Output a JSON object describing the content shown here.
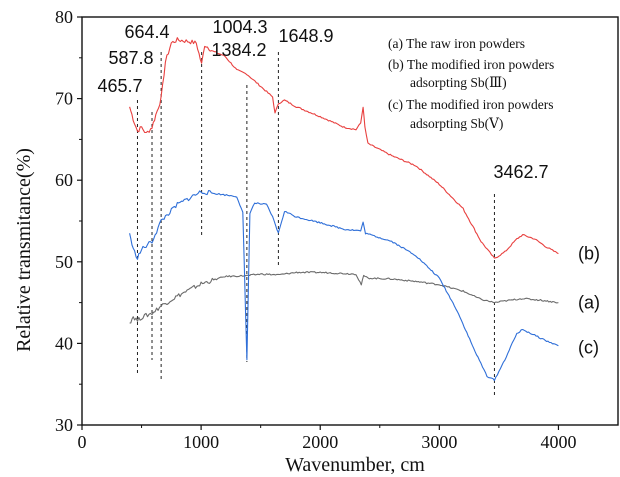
{
  "chart_data": {
    "type": "line",
    "xlabel": "Wavenumber, cm",
    "ylabel": "Relative transmitance(%)",
    "xlim": [
      0,
      4500
    ],
    "ylim": [
      30,
      80
    ],
    "xticks": [
      0,
      1000,
      2000,
      3000,
      4000
    ],
    "yticks": [
      30,
      40,
      50,
      60,
      70,
      80
    ],
    "legend_position": "top-right",
    "legend": [
      "(a) The raw iron powders",
      "(b) The modified iron powders",
      "adsorpting Sb(Ⅲ)",
      "(c) The modified iron powders",
      "adsorpting Sb(Ⅴ)"
    ],
    "series": [
      {
        "name": "(b)",
        "color": "#e8403f",
        "points": [
          [
            400,
            69.0
          ],
          [
            430,
            67.5
          ],
          [
            465.7,
            66.0
          ],
          [
            500,
            66.5
          ],
          [
            540,
            65.7
          ],
          [
            587.8,
            66.5
          ],
          [
            620,
            68.0
          ],
          [
            664.4,
            70.0
          ],
          [
            700,
            74.5
          ],
          [
            750,
            76.8
          ],
          [
            800,
            77.2
          ],
          [
            900,
            77.0
          ],
          [
            960,
            76.8
          ],
          [
            1004.3,
            74.2
          ],
          [
            1030,
            76.6
          ],
          [
            1100,
            75.8
          ],
          [
            1200,
            75.2
          ],
          [
            1300,
            73.5
          ],
          [
            1384.2,
            73.0
          ],
          [
            1500,
            71.5
          ],
          [
            1600,
            70.2
          ],
          [
            1620,
            68.2
          ],
          [
            1648.9,
            69.4
          ],
          [
            1700,
            69.8
          ],
          [
            1800,
            69.0
          ],
          [
            2000,
            67.8
          ],
          [
            2200,
            66.5
          ],
          [
            2300,
            66.2
          ],
          [
            2340,
            67.0
          ],
          [
            2360,
            69.0
          ],
          [
            2375,
            66.5
          ],
          [
            2400,
            64.5
          ],
          [
            2600,
            63.0
          ],
          [
            2800,
            61.8
          ],
          [
            3000,
            59.5
          ],
          [
            3200,
            56.5
          ],
          [
            3350,
            52.5
          ],
          [
            3462.7,
            50.4
          ],
          [
            3550,
            51.2
          ],
          [
            3650,
            52.8
          ],
          [
            3700,
            53.3
          ],
          [
            3800,
            52.8
          ],
          [
            3900,
            51.8
          ],
          [
            4000,
            51.0
          ]
        ]
      },
      {
        "name": "(a)",
        "color": "#6b6b6b",
        "points": [
          [
            400,
            42.5
          ],
          [
            430,
            43.3
          ],
          [
            465.7,
            42.8
          ],
          [
            500,
            43.2
          ],
          [
            587.8,
            43.7
          ],
          [
            664.4,
            44.6
          ],
          [
            800,
            45.8
          ],
          [
            1000,
            47.3
          ],
          [
            1200,
            48.2
          ],
          [
            1384.2,
            48.3
          ],
          [
            1500,
            48.5
          ],
          [
            1648.9,
            48.4
          ],
          [
            1800,
            48.7
          ],
          [
            2000,
            48.7
          ],
          [
            2300,
            48.5
          ],
          [
            2345,
            47.2
          ],
          [
            2365,
            48.3
          ],
          [
            2400,
            48.0
          ],
          [
            2600,
            47.9
          ],
          [
            2800,
            47.6
          ],
          [
            3000,
            47.2
          ],
          [
            3200,
            46.4
          ],
          [
            3350,
            45.4
          ],
          [
            3462.7,
            45.0
          ],
          [
            3550,
            45.2
          ],
          [
            3700,
            45.5
          ],
          [
            3850,
            45.3
          ],
          [
            4000,
            45.0
          ]
        ]
      },
      {
        "name": "(c)",
        "color": "#2f6fd8",
        "points": [
          [
            400,
            53.5
          ],
          [
            430,
            51.5
          ],
          [
            465.7,
            50.5
          ],
          [
            500,
            51.5
          ],
          [
            587.8,
            52.5
          ],
          [
            664.4,
            55.0
          ],
          [
            800,
            57.0
          ],
          [
            1000,
            58.6
          ],
          [
            1100,
            58.4
          ],
          [
            1200,
            58.2
          ],
          [
            1300,
            58.0
          ],
          [
            1350,
            56.0
          ],
          [
            1384.2,
            38.0
          ],
          [
            1410,
            56.0
          ],
          [
            1450,
            57.2
          ],
          [
            1550,
            57.0
          ],
          [
            1600,
            55.5
          ],
          [
            1648.9,
            53.5
          ],
          [
            1700,
            56.2
          ],
          [
            1800,
            55.5
          ],
          [
            2000,
            54.8
          ],
          [
            2200,
            54.0
          ],
          [
            2340,
            53.8
          ],
          [
            2360,
            54.8
          ],
          [
            2380,
            53.5
          ],
          [
            2600,
            52.5
          ],
          [
            2800,
            50.8
          ],
          [
            3000,
            48.0
          ],
          [
            3150,
            44.0
          ],
          [
            3300,
            39.0
          ],
          [
            3400,
            36.0
          ],
          [
            3462.7,
            35.5
          ],
          [
            3550,
            38.0
          ],
          [
            3650,
            41.2
          ],
          [
            3700,
            41.7
          ],
          [
            3800,
            41.0
          ],
          [
            3900,
            40.3
          ],
          [
            4000,
            39.7
          ]
        ]
      }
    ],
    "end_labels": [
      {
        "text": "(b)",
        "y": 51.0
      },
      {
        "text": "(a)",
        "y": 45.0
      },
      {
        "text": "(c)",
        "y": 39.5
      }
    ],
    "peaks": [
      {
        "label": "465.7",
        "x": 465.7
      },
      {
        "label": "587.8",
        "x": 587.8
      },
      {
        "label": "664.4",
        "x": 664.4
      },
      {
        "label": "1004.3",
        "x": 1004.3
      },
      {
        "label": "1384.2",
        "x": 1384.2
      },
      {
        "label": "1648.9",
        "x": 1648.9
      },
      {
        "label": "3462.7",
        "x": 3462.7
      }
    ]
  }
}
